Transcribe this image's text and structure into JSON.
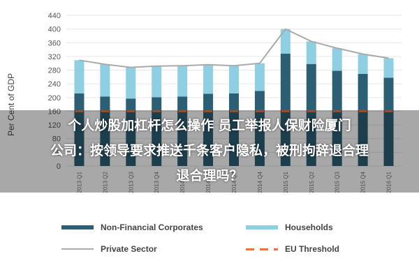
{
  "chart_data": {
    "type": "bar",
    "title": "",
    "xlabel": "",
    "ylabel": "Per Cent of GDP",
    "ylim": [
      0,
      440
    ],
    "yticks": [
      0,
      40,
      80,
      120,
      160,
      200,
      240,
      280,
      320,
      360,
      400,
      440
    ],
    "grid": true,
    "legend_position": "bottom",
    "categories": [
      "2013 Q1",
      "2013 Q2",
      "2013 Q3",
      "2013 Q4",
      "2014 Q1",
      "2014 Q2",
      "2014 Q3",
      "2014 Q4",
      "2015 Q1",
      "2015 Q2",
      "2015 Q3",
      "2015 Q4",
      "2016 Q1"
    ],
    "series": [
      {
        "name": "Non-Financial Corporates",
        "kind": "stacked-bar",
        "color": "#2d5f74",
        "values": [
          212,
          203,
          197,
          201,
          203,
          211,
          212,
          219,
          328,
          298,
          278,
          269,
          258
        ]
      },
      {
        "name": "Households",
        "kind": "stacked-bar",
        "color": "#8fcfe3",
        "values": [
          97,
          94,
          91,
          91,
          90,
          85,
          81,
          81,
          72,
          66,
          66,
          58,
          57
        ]
      },
      {
        "name": "Private Sector",
        "kind": "line",
        "color": "#aaaaaa",
        "values": [
          309,
          297,
          288,
          292,
          293,
          296,
          293,
          300,
          400,
          364,
          344,
          327,
          315
        ]
      },
      {
        "name": "EU Threshold",
        "kind": "dashed-line",
        "color": "#e8763a",
        "values": [
          160,
          160,
          160,
          160,
          160,
          160,
          160,
          160,
          160,
          160,
          160,
          160,
          160
        ]
      }
    ]
  },
  "overlay": {
    "lines": [
      "个人炒股加杠杆怎么操作 员工举报人保财险厦门",
      "公司：按领导要求推送千条客户隐私，被刑拘辞退合理",
      "退合理吗？"
    ]
  }
}
